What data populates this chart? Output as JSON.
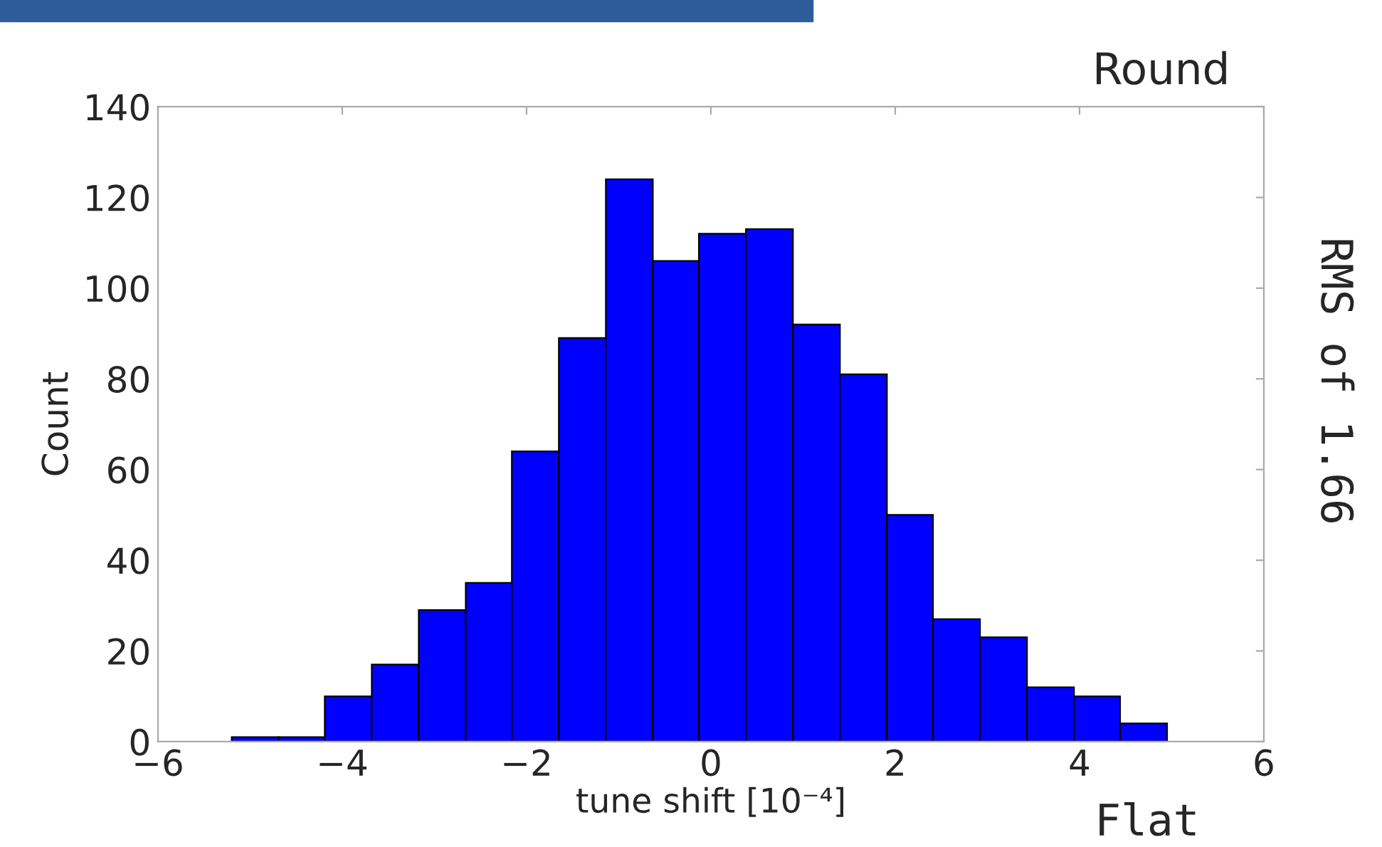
{
  "chart_data": {
    "type": "histogram",
    "xlabel": "tune shift [10⁻⁴]",
    "ylabel": "Count",
    "annotations": [
      "Round",
      "RMS of 1.66",
      "Flat"
    ],
    "bins": [
      -5.2,
      -4.69,
      -4.19,
      -3.68,
      -3.17,
      -2.66,
      -2.16,
      -1.65,
      -1.14,
      -0.63,
      -0.13,
      0.38,
      0.89,
      1.4,
      1.91,
      2.41,
      2.92,
      3.43,
      3.94,
      4.44,
      4.95
    ],
    "values": [
      1,
      1,
      10,
      17,
      29,
      35,
      64,
      89,
      124,
      106,
      112,
      113,
      92,
      81,
      50,
      27,
      23,
      12,
      10,
      4
    ],
    "color": "#0000ff",
    "xlim": [
      -6,
      6
    ],
    "xticks": [
      {
        "value": -6,
        "label": "−6"
      },
      {
        "value": -4,
        "label": "−4"
      },
      {
        "value": -2,
        "label": "−2"
      },
      0,
      2,
      4,
      6
    ],
    "ylim": [
      0,
      140
    ],
    "yticks": [
      0,
      20,
      40,
      60,
      80,
      100,
      120,
      140
    ],
    "grid": false,
    "legend": false
  }
}
